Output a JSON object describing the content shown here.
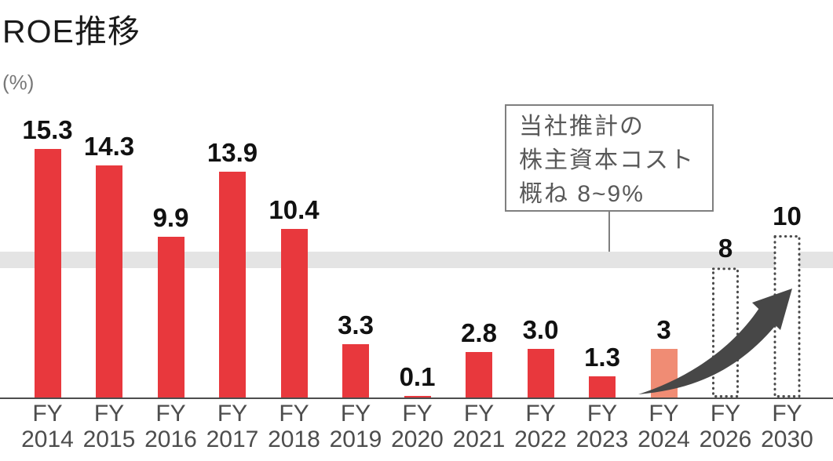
{
  "title": "ROE推移",
  "unit_label": "(%)",
  "callout": {
    "lines": [
      "当社推計の",
      "株主資本コスト",
      "概ね 8~9%"
    ]
  },
  "chart_data": {
    "type": "bar",
    "title": "ROE推移",
    "xlabel": "",
    "ylabel": "(%)",
    "ylim": [
      0,
      17
    ],
    "grid": false,
    "legend": "none",
    "categories": [
      "FY 2014",
      "FY 2015",
      "FY 2016",
      "FY 2017",
      "FY 2018",
      "FY 2019",
      "FY 2020",
      "FY 2021",
      "FY 2022",
      "FY 2023",
      "FY 2024",
      "FY 2026",
      "FY 2030"
    ],
    "bars": [
      {
        "fy": "2014",
        "value": 15.3,
        "label": "15.3",
        "style": "actual"
      },
      {
        "fy": "2015",
        "value": 14.3,
        "label": "14.3",
        "style": "actual"
      },
      {
        "fy": "2016",
        "value": 9.9,
        "label": "9.9",
        "style": "actual"
      },
      {
        "fy": "2017",
        "value": 13.9,
        "label": "13.9",
        "style": "actual"
      },
      {
        "fy": "2018",
        "value": 10.4,
        "label": "10.4",
        "style": "actual"
      },
      {
        "fy": "2019",
        "value": 3.3,
        "label": "3.3",
        "style": "actual"
      },
      {
        "fy": "2020",
        "value": 0.1,
        "label": "0.1",
        "style": "actual"
      },
      {
        "fy": "2021",
        "value": 2.8,
        "label": "2.8",
        "style": "actual"
      },
      {
        "fy": "2022",
        "value": 3.0,
        "label": "3.0",
        "style": "actual"
      },
      {
        "fy": "2023",
        "value": 1.3,
        "label": "1.3",
        "style": "actual"
      },
      {
        "fy": "2024",
        "value": 3,
        "label": "3",
        "style": "forecast"
      },
      {
        "fy": "2026",
        "value": 8,
        "label": "8",
        "style": "outline-target"
      },
      {
        "fy": "2030",
        "value": 10,
        "label": "10",
        "style": "outline-target"
      }
    ],
    "band": {
      "from": 8,
      "to": 9,
      "label": "当社推計の株主資本コスト概ね 8~9%"
    },
    "annotations": [
      {
        "type": "callout-box",
        "text": "当社推計の株主資本コスト概ね 8~9%",
        "points_to": "band"
      },
      {
        "type": "growth-arrow",
        "from_fy": "2024",
        "to_fy": "2030"
      }
    ],
    "colors": {
      "bar_actual": "#e8383d",
      "bar_forecast": "#f08c74",
      "band": "#e4e4e4",
      "arrow": "#474747",
      "axis": "#4d4d4d",
      "outline": "#4a4a4a",
      "value_label": "#111111",
      "tick_label": "#4d4d4d"
    }
  }
}
